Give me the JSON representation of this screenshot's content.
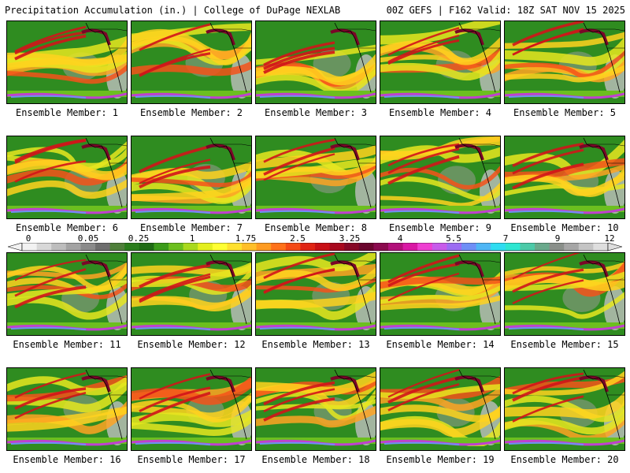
{
  "header": {
    "left_title": "Precipitation Accumulation (in.) | College of DuPage NEXLAB",
    "right_title": "00Z GEFS | F162 Valid: 18Z SAT NOV 15 2025"
  },
  "colorbar": {
    "labels": [
      "0",
      "0.05",
      "0.25",
      "1",
      "1.75",
      "2.5",
      "3.25",
      "4",
      "5.5",
      "7",
      "9",
      "12"
    ],
    "colors": [
      "#f2f2f2",
      "#d8d8d8",
      "#bdbdbd",
      "#a3a3a3",
      "#8a8a8a",
      "#6e6e6e",
      "#4f7f3a",
      "#2a7d1c",
      "#1f6b14",
      "#3b9b1a",
      "#6cbf1f",
      "#a9d91e",
      "#e3ef1f",
      "#ffff33",
      "#ffe02e",
      "#ffbf28",
      "#ff9b21",
      "#ff711a",
      "#f44a16",
      "#e02414",
      "#c81016",
      "#a8081e",
      "#860726",
      "#6b062e",
      "#8b0a4e",
      "#b2107a",
      "#d918a4",
      "#ee3fd1",
      "#c75bea",
      "#9b6cf2",
      "#6f8ff6",
      "#4fb6f5",
      "#2fdcf1",
      "#2ee6d1",
      "#4ccaa8",
      "#6aa98c",
      "#8a8f8a",
      "#a6a6a6",
      "#c4c4c4",
      "#dedede"
    ]
  },
  "panels": [
    {
      "label": "Ensemble Member: 1"
    },
    {
      "label": "Ensemble Member: 2"
    },
    {
      "label": "Ensemble Member: 3"
    },
    {
      "label": "Ensemble Member: 4"
    },
    {
      "label": "Ensemble Member: 5"
    },
    {
      "label": "Ensemble Member: 6"
    },
    {
      "label": "Ensemble Member: 7"
    },
    {
      "label": "Ensemble Member: 8"
    },
    {
      "label": "Ensemble Member: 9"
    },
    {
      "label": "Ensemble Member: 10"
    },
    {
      "label": "Ensemble Member: 11"
    },
    {
      "label": "Ensemble Member: 12"
    },
    {
      "label": "Ensemble Member: 13"
    },
    {
      "label": "Ensemble Member: 14"
    },
    {
      "label": "Ensemble Member: 15"
    },
    {
      "label": "Ensemble Member: 16"
    },
    {
      "label": "Ensemble Member: 17"
    },
    {
      "label": "Ensemble Member: 18"
    },
    {
      "label": "Ensemble Member: 19"
    },
    {
      "label": "Ensemble Member: 20"
    }
  ]
}
